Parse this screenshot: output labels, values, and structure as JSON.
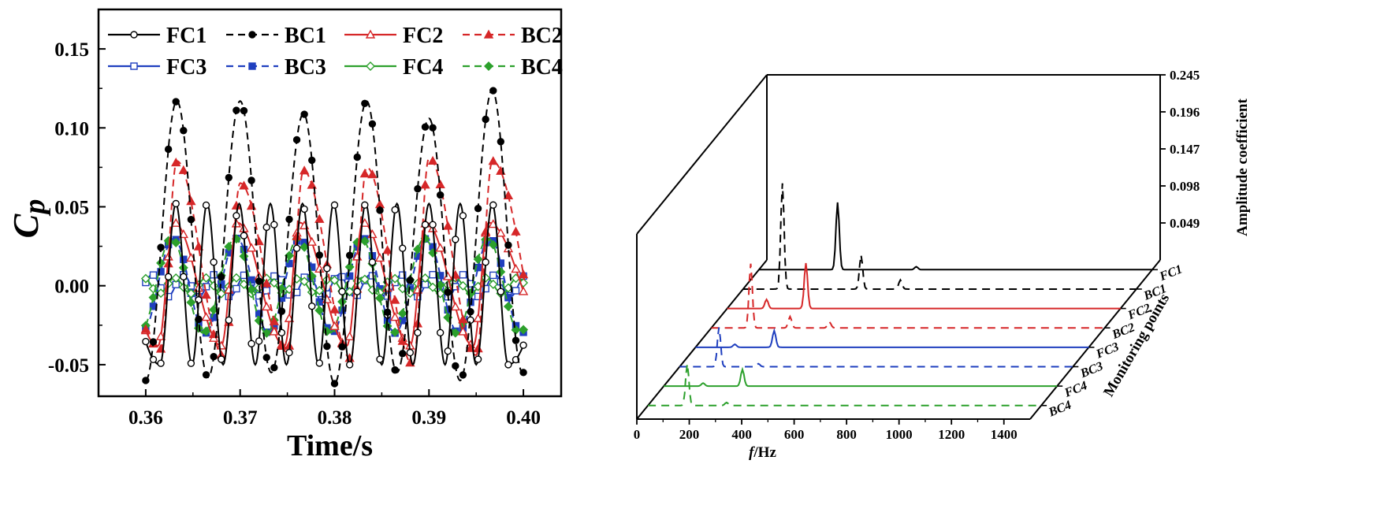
{
  "chart_data": [
    {
      "type": "line",
      "xlabel": "Time/s",
      "ylabel": "Cp",
      "xlim": [
        0.355,
        0.404
      ],
      "ylim": [
        -0.07,
        0.175
      ],
      "xticks": [
        "0.36",
        "0.37",
        "0.38",
        "0.39",
        "0.40"
      ],
      "yticks": [
        "-0.05",
        "0.00",
        "0.05",
        "0.10",
        "0.15"
      ],
      "legend": [
        "FC1",
        "BC1",
        "FC2",
        "BC2",
        "FC3",
        "BC3",
        "FC4",
        "BC4"
      ],
      "series": [
        {
          "name": "FC1",
          "color": "#000000",
          "dash": false,
          "marker": "open-circle",
          "peaks_t": [
            0.3632,
            0.3665,
            0.3699,
            0.3732,
            0.3766,
            0.3799,
            0.3833,
            0.3866,
            0.39,
            0.3933,
            0.3967
          ],
          "troughs_t": [
            0.3615,
            0.3649,
            0.3682,
            0.3716,
            0.3749,
            0.3783,
            0.3816,
            0.385,
            0.3883,
            0.3917,
            0.395,
            0.3984
          ],
          "amplitude": 0.052,
          "trough_amplitude": -0.05
        },
        {
          "name": "BC1",
          "color": "#000000",
          "dash": true,
          "marker": "filled-circle",
          "peaks_t": [
            0.3633,
            0.37,
            0.3767,
            0.3834,
            0.39,
            0.3967
          ],
          "peak_values": [
            0.117,
            0.117,
            0.109,
            0.117,
            0.106,
            0.124
          ],
          "troughs_t": [
            0.36,
            0.3666,
            0.3733,
            0.38,
            0.3866,
            0.3933,
            0.3999
          ],
          "trough_values": [
            -0.06,
            -0.058,
            -0.055,
            -0.062,
            -0.055,
            -0.06,
            -0.055
          ]
        },
        {
          "name": "FC2",
          "color": "#d62728",
          "dash": false,
          "marker": "open-triangle",
          "peaks_t": [
            0.363,
            0.3697,
            0.3763,
            0.383,
            0.3897,
            0.3963
          ],
          "troughs_t": [
            0.3613,
            0.368,
            0.3747,
            0.3813,
            0.388,
            0.3947
          ],
          "amplitude": 0.04,
          "trough_amplitude": -0.038
        },
        {
          "name": "BC2",
          "color": "#d62728",
          "dash": true,
          "marker": "filled-triangle",
          "peaks_t": [
            0.3633,
            0.37,
            0.3767,
            0.3834,
            0.39,
            0.3967
          ],
          "peak_values": [
            0.079,
            0.065,
            0.073,
            0.075,
            0.081,
            0.079
          ],
          "troughs_t": [
            0.3616,
            0.3683,
            0.375,
            0.3817,
            0.3883,
            0.395
          ],
          "trough_values": [
            -0.04,
            -0.045,
            -0.042,
            -0.046,
            -0.05,
            -0.044
          ]
        },
        {
          "name": "FC3",
          "color": "#1f3fbf",
          "dash": false,
          "marker": "open-square",
          "amplitude": 0.007,
          "period": 0.0033
        },
        {
          "name": "BC3",
          "color": "#1f3fbf",
          "dash": true,
          "marker": "filled-square",
          "amplitude": 0.03,
          "period": 0.0067
        },
        {
          "name": "FC4",
          "color": "#2ca02c",
          "dash": false,
          "marker": "open-diamond",
          "amplitude": 0.005,
          "period": 0.0033
        },
        {
          "name": "BC4",
          "color": "#2ca02c",
          "dash": true,
          "marker": "filled-diamond",
          "amplitude": 0.03,
          "period": 0.0067
        }
      ]
    },
    {
      "type": "waterfall",
      "xlabel_italic": "f",
      "xlabel_rest": "/Hz",
      "zlabel": "Amplitude coefficient",
      "ylabel": "Monitoring points",
      "xlim": [
        0,
        1500
      ],
      "zlim": [
        0,
        0.245
      ],
      "xticks": [
        "0",
        "200",
        "400",
        "600",
        "800",
        "1000",
        "1200",
        "1400"
      ],
      "zticks": [
        "0.049",
        "0.098",
        "0.147",
        "0.196",
        "0.245"
      ],
      "points": [
        "FC1",
        "BC1",
        "FC2",
        "BC2",
        "FC3",
        "BC3",
        "FC4",
        "BC4"
      ],
      "spectra": [
        {
          "name": "FC1",
          "color": "#000000",
          "dash": false,
          "peaks": [
            {
              "f": 300,
              "a": 0.089
            },
            {
              "f": 600,
              "a": 0.004
            }
          ]
        },
        {
          "name": "BC1",
          "color": "#000000",
          "dash": true,
          "peaks": [
            {
              "f": 150,
              "a": 0.14
            },
            {
              "f": 450,
              "a": 0.045
            },
            {
              "f": 600,
              "a": 0.012
            }
          ]
        },
        {
          "name": "FC2",
          "color": "#d62728",
          "dash": false,
          "peaks": [
            {
              "f": 300,
              "a": 0.06
            },
            {
              "f": 150,
              "a": 0.012
            }
          ]
        },
        {
          "name": "BC2",
          "color": "#d62728",
          "dash": true,
          "peaks": [
            {
              "f": 150,
              "a": 0.085
            },
            {
              "f": 300,
              "a": 0.015
            },
            {
              "f": 450,
              "a": 0.008
            }
          ]
        },
        {
          "name": "FC3",
          "color": "#1f3fbf",
          "dash": false,
          "peaks": [
            {
              "f": 300,
              "a": 0.022
            },
            {
              "f": 150,
              "a": 0.004
            }
          ]
        },
        {
          "name": "BC3",
          "color": "#1f3fbf",
          "dash": true,
          "peaks": [
            {
              "f": 150,
              "a": 0.052
            },
            {
              "f": 300,
              "a": 0.004
            }
          ]
        },
        {
          "name": "FC4",
          "color": "#2ca02c",
          "dash": false,
          "peaks": [
            {
              "f": 300,
              "a": 0.022
            },
            {
              "f": 150,
              "a": 0.004
            }
          ]
        },
        {
          "name": "BC4",
          "color": "#2ca02c",
          "dash": true,
          "peaks": [
            {
              "f": 150,
              "a": 0.055
            },
            {
              "f": 300,
              "a": 0.004
            }
          ]
        }
      ]
    }
  ]
}
